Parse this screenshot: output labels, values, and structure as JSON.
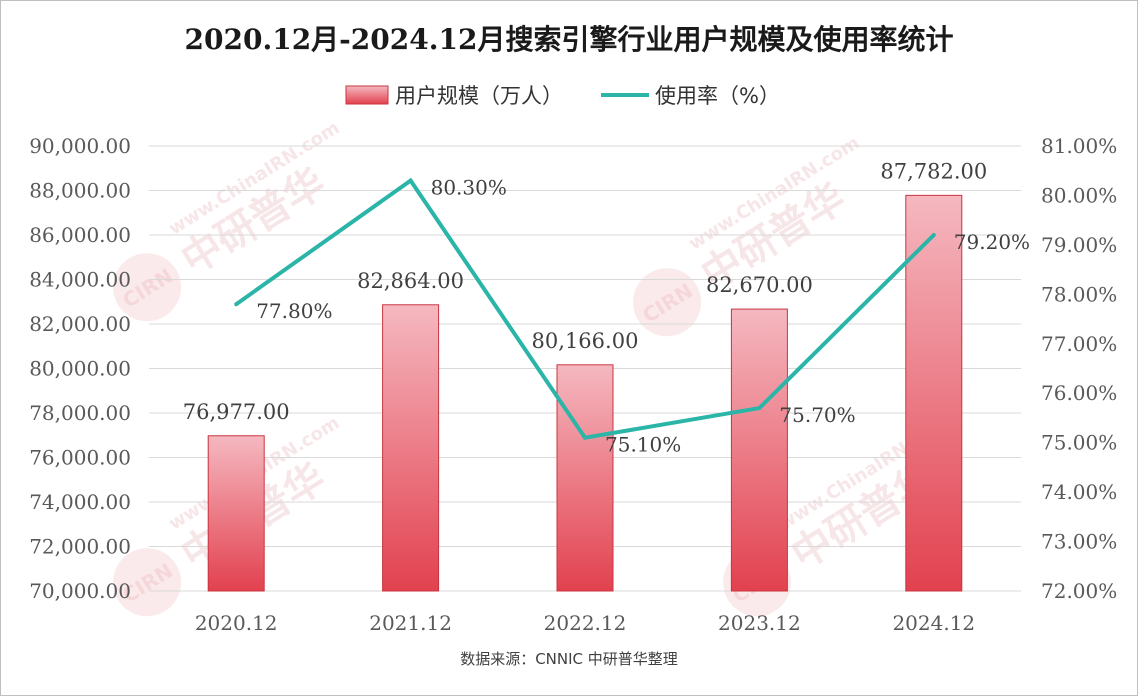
{
  "chart_data": {
    "type": "bar",
    "title": "2020.12月-2024.12月搜索引擎行业用户规模及使用率统计",
    "categories": [
      "2020.12",
      "2021.12",
      "2022.12",
      "2023.12",
      "2024.12"
    ],
    "series": [
      {
        "name": "用户规模（万人）",
        "type": "bar",
        "axis": "left",
        "values": [
          76977,
          82864,
          80166,
          82670,
          87782
        ],
        "labels": [
          "76,977.00",
          "82,864.00",
          "80,166.00",
          "82,670.00",
          "87,782.00"
        ]
      },
      {
        "name": "使用率（%）",
        "type": "line",
        "axis": "right",
        "values": [
          77.8,
          80.3,
          75.1,
          75.7,
          79.2
        ],
        "labels": [
          "77.80%",
          "80.30%",
          "75.10%",
          "75.70%",
          "79.20%"
        ]
      }
    ],
    "y_left": {
      "range": [
        70000,
        90000
      ],
      "ticks": [
        "90,000.00",
        "88,000.00",
        "86,000.00",
        "84,000.00",
        "82,000.00",
        "80,000.00",
        "78,000.00",
        "76,000.00",
        "74,000.00",
        "72,000.00",
        "70,000.00"
      ]
    },
    "y_right": {
      "range": [
        72,
        81
      ],
      "ticks": [
        "81.00%",
        "80.00%",
        "79.00%",
        "78.00%",
        "77.00%",
        "76.00%",
        "75.00%",
        "74.00%",
        "73.00%",
        "72.00%"
      ]
    },
    "grid": true,
    "legend_position": "top",
    "colors": {
      "bar_top": "#f5b8c0",
      "bar_bottom": "#e2414f",
      "bar_stroke": "#c9343f",
      "line": "#2bb5a8",
      "grid": "#d9d9d9"
    }
  },
  "source_note": "数据来源：CNNIC 中研普华整理",
  "watermark": {
    "logo": "CIRN",
    "brand": "中研普华",
    "site": "www.ChinaIRN.com"
  }
}
